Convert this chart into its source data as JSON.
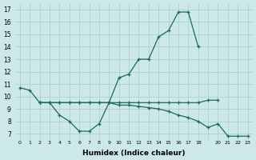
{
  "xlabel": "Humidex (Indice chaleur)",
  "bg_color": "#cce8e8",
  "grid_color": "#aacccc",
  "line_color": "#1a6b5a",
  "line_upper_x": [
    0,
    1,
    2,
    3,
    4,
    5,
    6,
    7,
    8,
    9,
    10,
    11,
    12,
    13,
    14,
    15,
    16,
    17,
    18
  ],
  "line_upper_y": [
    10.7,
    10.5,
    9.5,
    9.5,
    9.5,
    9.5,
    9.5,
    9.5,
    9.5,
    9.5,
    11.5,
    11.8,
    13.0,
    13.0,
    14.8,
    15.3,
    16.8,
    16.8,
    14.0
  ],
  "line_mid_x": [
    2,
    3,
    4,
    5,
    6,
    7,
    8,
    9,
    10,
    11,
    12,
    13,
    14,
    15,
    16,
    17,
    18,
    19,
    20
  ],
  "line_mid_y": [
    9.5,
    9.5,
    9.5,
    9.5,
    9.5,
    9.5,
    9.5,
    9.5,
    9.5,
    9.5,
    9.5,
    9.5,
    9.5,
    9.5,
    9.5,
    9.5,
    9.5,
    9.7,
    9.7
  ],
  "line_lower_x": [
    2,
    3,
    4,
    5,
    6,
    7,
    8,
    9,
    10,
    11,
    12,
    13,
    14,
    15,
    16,
    17,
    18,
    19,
    20,
    21,
    22,
    23
  ],
  "line_lower_y": [
    9.5,
    9.5,
    8.5,
    8.0,
    7.2,
    7.2,
    7.8,
    9.5,
    9.3,
    9.3,
    9.2,
    9.1,
    9.0,
    8.8,
    8.5,
    8.3,
    8.0,
    7.5,
    7.8,
    6.8,
    6.8,
    6.8
  ],
  "xlim": [
    -0.5,
    23.5
  ],
  "ylim": [
    6.5,
    17.5
  ],
  "yticks": [
    7,
    8,
    9,
    10,
    11,
    12,
    13,
    14,
    15,
    16,
    17
  ],
  "xtick_positions": [
    0,
    1,
    2,
    3,
    4,
    5,
    6,
    7,
    8,
    9,
    10,
    11,
    12,
    13,
    14,
    15,
    16,
    17,
    18,
    19,
    20,
    21,
    22,
    23
  ],
  "xtick_labels": [
    "0",
    "1",
    "2",
    "3",
    "4",
    "5",
    "6",
    "7",
    "8",
    "9",
    "10",
    "11",
    "12",
    "13",
    "14",
    "15",
    "16",
    "17",
    "18",
    "",
    "20",
    "21",
    "22",
    "23"
  ]
}
